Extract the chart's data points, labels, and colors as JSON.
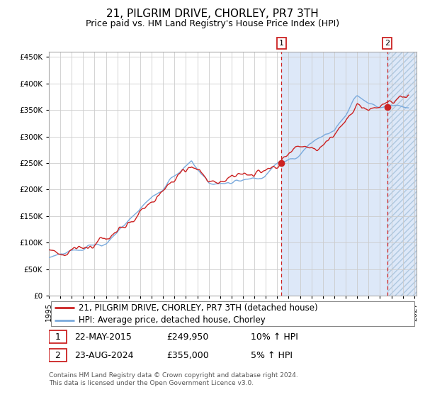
{
  "title": "21, PILGRIM DRIVE, CHORLEY, PR7 3TH",
  "subtitle": "Price paid vs. HM Land Registry's House Price Index (HPI)",
  "ylim": [
    0,
    460000
  ],
  "yticks": [
    0,
    50000,
    100000,
    150000,
    200000,
    250000,
    300000,
    350000,
    400000,
    450000
  ],
  "ytick_labels": [
    "£0",
    "£50K",
    "£100K",
    "£150K",
    "£200K",
    "£250K",
    "£300K",
    "£350K",
    "£400K",
    "£450K"
  ],
  "hpi_color": "#7aaadd",
  "price_color": "#cc2222",
  "bg_color": "#f0f4ff",
  "shade1_color": "#d8e8f8",
  "shade2_color": "#dde8f5",
  "hatch_color": "#b0c8e0",
  "grid_color": "#dddddd",
  "marker_color": "#cc2222",
  "vline_color": "#cc2222",
  "sale1_date": 2015.38,
  "sale1_price": 249950,
  "sale2_date": 2024.64,
  "sale2_price": 355000,
  "sale1_label": "1",
  "sale2_label": "2",
  "legend_address": "21, PILGRIM DRIVE, CHORLEY, PR7 3TH (detached house)",
  "legend_hpi": "HPI: Average price, detached house, Chorley",
  "ann1_date": "22-MAY-2015",
  "ann1_price": "£249,950",
  "ann1_hpi": "10% ↑ HPI",
  "ann2_date": "23-AUG-2024",
  "ann2_price": "£355,000",
  "ann2_hpi": "5% ↑ HPI",
  "footer": "Contains HM Land Registry data © Crown copyright and database right 2024.\nThis data is licensed under the Open Government Licence v3.0.",
  "title_fontsize": 11,
  "subtitle_fontsize": 9,
  "tick_fontsize": 7.5,
  "legend_fontsize": 8.5,
  "ann_fontsize": 9,
  "footer_fontsize": 6.5
}
